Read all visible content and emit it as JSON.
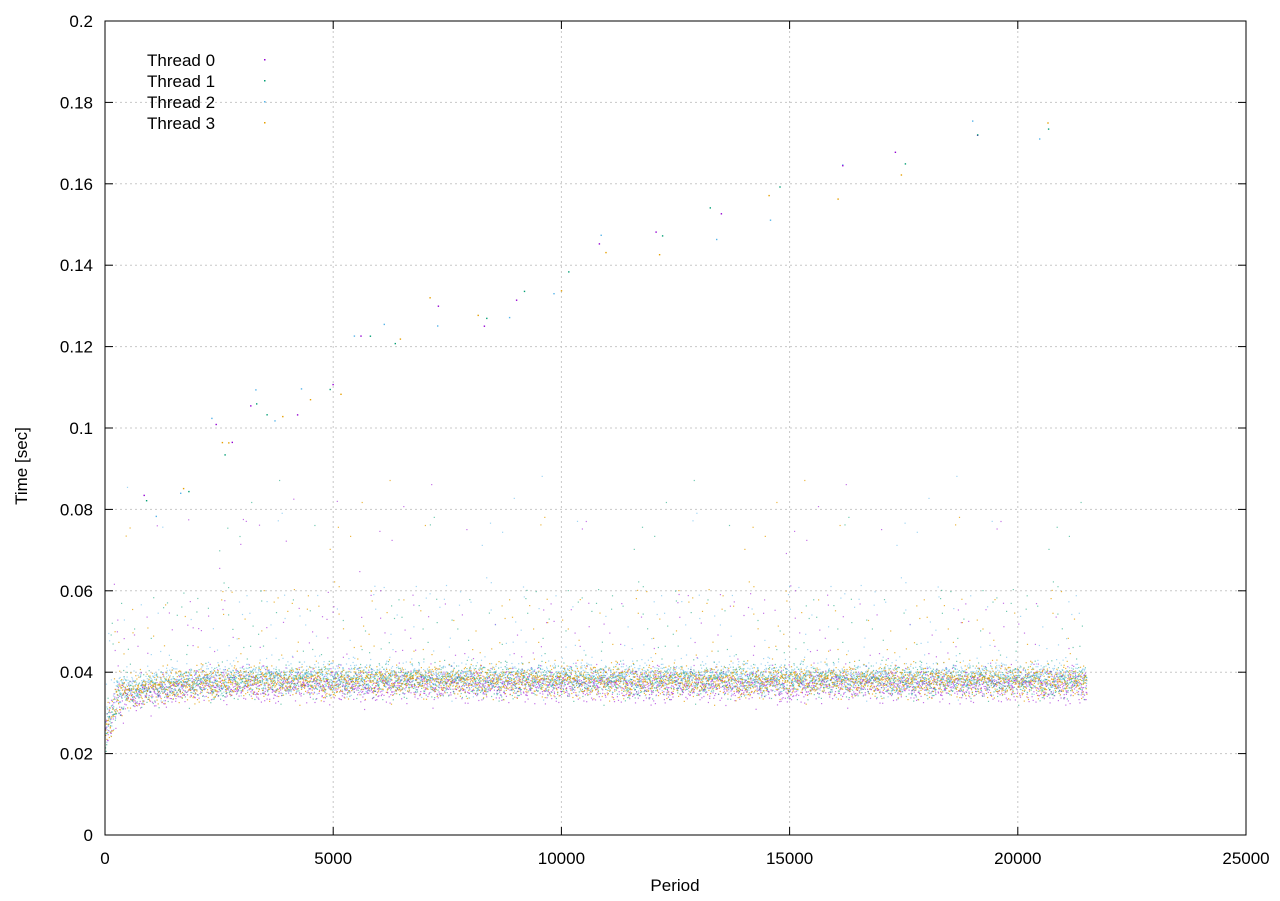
{
  "chart_data": {
    "type": "scatter",
    "title": "",
    "xlabel": "Period",
    "ylabel": "Time [sec]",
    "xlim": [
      0,
      25000
    ],
    "ylim": [
      0,
      0.2
    ],
    "xticks": [
      0,
      5000,
      10000,
      15000,
      20000,
      25000
    ],
    "yticks": [
      0,
      0.02,
      0.04,
      0.06,
      0.08,
      0.1,
      0.12,
      0.14,
      0.16,
      0.18,
      0.2
    ],
    "xtick_labels": [
      "0",
      "5000",
      "10000",
      "15000",
      "20000",
      "25000"
    ],
    "ytick_labels": [
      "0",
      "0.02",
      "0.04",
      "0.06",
      "0.08",
      "0.1",
      "0.12",
      "0.14",
      "0.16",
      "0.18",
      "0.2"
    ],
    "grid": true,
    "legend_position": "top-left",
    "series": [
      {
        "name": "Thread 0",
        "color": "#9400d3",
        "x": [
          0,
          300,
          1500,
          3000,
          5000,
          6500,
          8000,
          10000,
          12000,
          14000,
          16000,
          18000,
          20000,
          21500
        ],
        "y": [
          0.024,
          0.034,
          0.036,
          0.037,
          0.037,
          0.037,
          0.037,
          0.037,
          0.037,
          0.037,
          0.037,
          0.037,
          0.037,
          0.037
        ]
      },
      {
        "name": "Thread 1",
        "color": "#009e73",
        "x": [
          0,
          300,
          1500,
          3000,
          5000,
          6500,
          8000,
          10000,
          12000,
          14000,
          16000,
          18000,
          20000,
          21500
        ],
        "y": [
          0.025,
          0.035,
          0.037,
          0.038,
          0.038,
          0.038,
          0.038,
          0.038,
          0.038,
          0.038,
          0.038,
          0.038,
          0.038,
          0.038
        ]
      },
      {
        "name": "Thread 2",
        "color": "#56b4e9",
        "x": [
          0,
          300,
          1500,
          3000,
          5000,
          6500,
          8000,
          10000,
          12000,
          14000,
          16000,
          18000,
          20000,
          21500
        ],
        "y": [
          0.025,
          0.036,
          0.038,
          0.039,
          0.039,
          0.039,
          0.039,
          0.039,
          0.039,
          0.039,
          0.039,
          0.039,
          0.039,
          0.039
        ]
      },
      {
        "name": "Thread 3",
        "color": "#e69f00",
        "x": [
          0,
          300,
          1500,
          3000,
          5000,
          6500,
          8000,
          10000,
          12000,
          14000,
          16000,
          18000,
          20000,
          21500
        ],
        "y": [
          0.024,
          0.035,
          0.037,
          0.038,
          0.038,
          0.038,
          0.038,
          0.038,
          0.038,
          0.038,
          0.038,
          0.038,
          0.038,
          0.038
        ]
      }
    ],
    "annotations": {
      "upper_outliers": {
        "x": [
          1000,
          1800,
          2400,
          2800,
          3300,
          3700,
          4300,
          5000,
          5600,
          6300,
          7200,
          8200,
          9000,
          10000,
          11000,
          12200,
          13300,
          14600,
          16000,
          17500,
          19000,
          20600
        ],
        "y": [
          0.082,
          0.087,
          0.1,
          0.098,
          0.106,
          0.102,
          0.108,
          0.112,
          0.118,
          0.124,
          0.128,
          0.125,
          0.131,
          0.135,
          0.143,
          0.146,
          0.15,
          0.155,
          0.16,
          0.166,
          0.173,
          0.172
        ]
      }
    }
  }
}
